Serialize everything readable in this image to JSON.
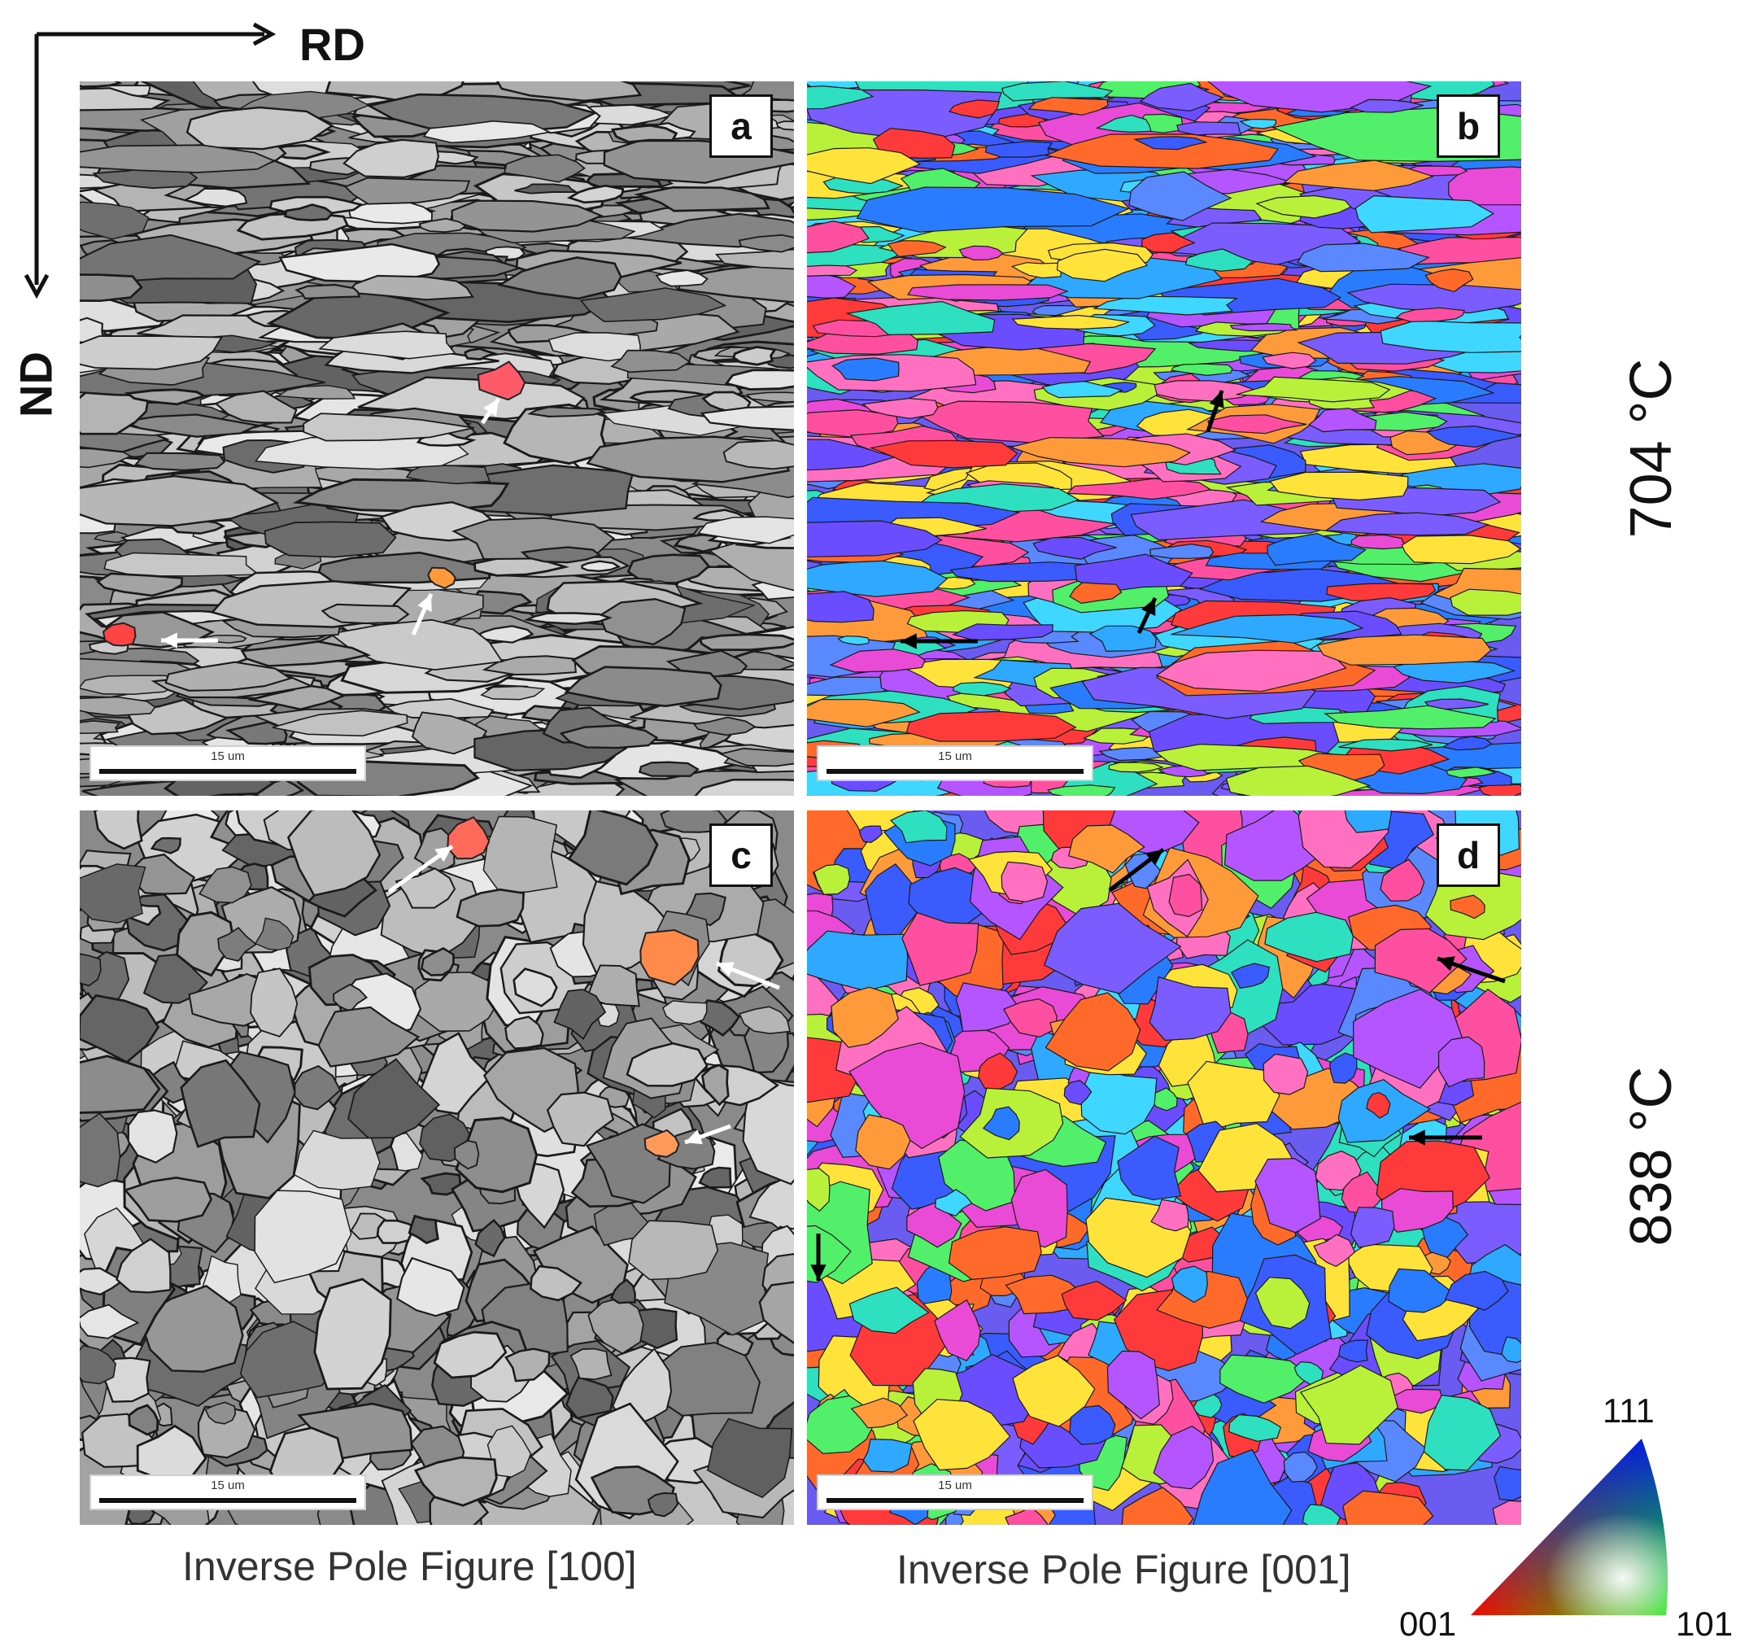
{
  "axes": {
    "rd_label": "RD",
    "nd_label": "ND"
  },
  "panels": [
    {
      "id": "a",
      "label": "a",
      "scale": "15 um",
      "style": "gray"
    },
    {
      "id": "b",
      "label": "b",
      "scale": "15 um",
      "style": "color"
    },
    {
      "id": "c",
      "label": "c",
      "scale": "15 um",
      "style": "gray"
    },
    {
      "id": "d",
      "label": "d",
      "scale": "15 um",
      "style": "color"
    }
  ],
  "temperatures": {
    "top": "704 °C",
    "bottom": "838 °C"
  },
  "captions": {
    "left": "Inverse Pole Figure [100]",
    "right": "Inverse Pole Figure [001]"
  },
  "ipf_key": {
    "top": "111",
    "left": "001",
    "right": "101"
  },
  "colors": {
    "arrow_light": "#ffffff",
    "arrow_dark": "#000000",
    "grain_boundary": "#1a1a1a"
  }
}
